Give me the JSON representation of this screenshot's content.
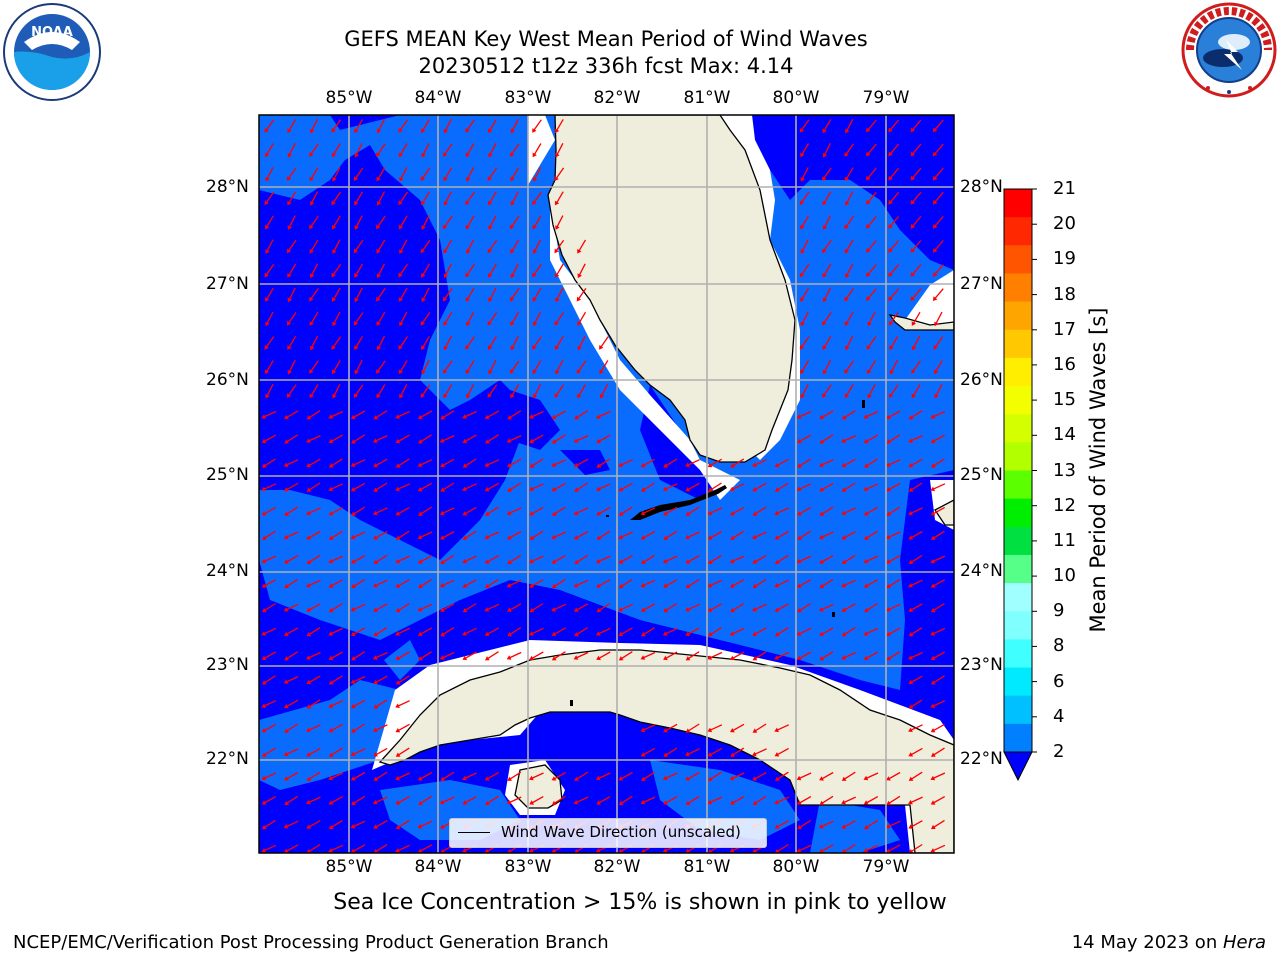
{
  "title": {
    "line1": "GEFS MEAN Key West Mean Period of Wind Waves",
    "line2": "20230512 t12z 336h fcst   Max: 4.14"
  },
  "map": {
    "lon_labels": [
      "85°W",
      "84°W",
      "83°W",
      "82°W",
      "81°W",
      "80°W",
      "79°W"
    ],
    "lat_labels": [
      "28°N",
      "27°N",
      "26°N",
      "25°N",
      "24°N",
      "23°N",
      "22°N"
    ],
    "land_color": "#efeddc",
    "ocean_colors": [
      "#0000ff",
      "#0a6cff"
    ],
    "arrow_color": "#ff0000"
  },
  "legend": {
    "label": "Wind Wave Direction (unscaled)"
  },
  "colorbar": {
    "label": "Mean Period of Wind Waves [s]",
    "ticks": [
      "21",
      "20",
      "19",
      "18",
      "17",
      "16",
      "15",
      "14",
      "13",
      "12",
      "11",
      "10",
      "9",
      "8",
      "6",
      "4",
      "2"
    ],
    "colors": [
      "#ff0000",
      "#ff2800",
      "#ff5500",
      "#ff7f00",
      "#ffa500",
      "#ffc800",
      "#ffee00",
      "#f3ff00",
      "#d4ff00",
      "#b2ff00",
      "#5cff00",
      "#00ee00",
      "#00e040",
      "#55ff88",
      "#a0ffff",
      "#80ffff",
      "#40ffff",
      "#00eaff",
      "#00c0ff",
      "#0080ff"
    ]
  },
  "note": "Sea Ice Concentration > 15% is shown in pink to yellow",
  "footer": {
    "left": "NCEP/EMC/Verification Post Processing Product Generation Branch",
    "right_date": "14 May 2023 on ",
    "right_machine": "Hera"
  },
  "logos": {
    "noaa_text": "NOAA",
    "nws_text": "NATIONAL WEATHER SERVICE"
  }
}
